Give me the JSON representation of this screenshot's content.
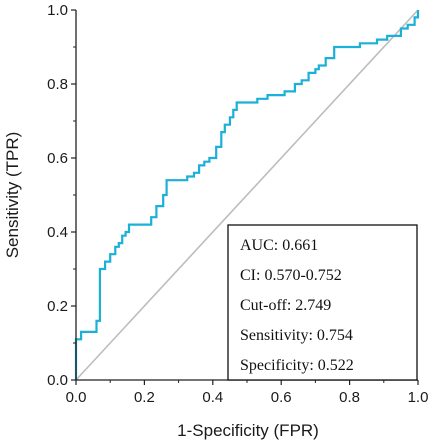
{
  "chart_data": {
    "type": "line",
    "title": "",
    "xlabel": "1-Specificity (FPR)",
    "ylabel": "Sensitivity (TPR)",
    "xlim": [
      0,
      1
    ],
    "ylim": [
      0,
      1
    ],
    "x_ticks": [
      "0.0",
      "0.2",
      "0.4",
      "0.6",
      "0.8",
      "1.0"
    ],
    "y_ticks": [
      "0.0",
      "0.2",
      "0.4",
      "0.6",
      "0.8",
      "1.0"
    ],
    "grid": false,
    "colors": {
      "roc": "#1ab0d8",
      "diagonal": "#bdbdbd",
      "axis": "#222222"
    },
    "series": [
      {
        "style": "step",
        "points": [
          [
            0.0,
            0.0
          ],
          [
            0.0,
            0.11
          ],
          [
            0.015,
            0.11
          ],
          [
            0.015,
            0.13
          ],
          [
            0.06,
            0.13
          ],
          [
            0.06,
            0.16
          ],
          [
            0.07,
            0.16
          ],
          [
            0.07,
            0.3
          ],
          [
            0.085,
            0.3
          ],
          [
            0.085,
            0.32
          ],
          [
            0.1,
            0.32
          ],
          [
            0.1,
            0.34
          ],
          [
            0.115,
            0.34
          ],
          [
            0.115,
            0.36
          ],
          [
            0.125,
            0.36
          ],
          [
            0.125,
            0.37
          ],
          [
            0.135,
            0.37
          ],
          [
            0.135,
            0.39
          ],
          [
            0.145,
            0.39
          ],
          [
            0.145,
            0.4
          ],
          [
            0.155,
            0.4
          ],
          [
            0.155,
            0.42
          ],
          [
            0.22,
            0.42
          ],
          [
            0.22,
            0.44
          ],
          [
            0.235,
            0.44
          ],
          [
            0.235,
            0.47
          ],
          [
            0.255,
            0.47
          ],
          [
            0.255,
            0.5
          ],
          [
            0.265,
            0.5
          ],
          [
            0.265,
            0.54
          ],
          [
            0.325,
            0.54
          ],
          [
            0.325,
            0.55
          ],
          [
            0.345,
            0.55
          ],
          [
            0.345,
            0.56
          ],
          [
            0.36,
            0.56
          ],
          [
            0.36,
            0.58
          ],
          [
            0.375,
            0.58
          ],
          [
            0.375,
            0.59
          ],
          [
            0.39,
            0.59
          ],
          [
            0.39,
            0.6
          ],
          [
            0.41,
            0.6
          ],
          [
            0.41,
            0.63
          ],
          [
            0.425,
            0.63
          ],
          [
            0.425,
            0.67
          ],
          [
            0.435,
            0.67
          ],
          [
            0.435,
            0.69
          ],
          [
            0.45,
            0.69
          ],
          [
            0.45,
            0.71
          ],
          [
            0.46,
            0.71
          ],
          [
            0.46,
            0.73
          ],
          [
            0.47,
            0.73
          ],
          [
            0.47,
            0.75
          ],
          [
            0.53,
            0.75
          ],
          [
            0.53,
            0.76
          ],
          [
            0.56,
            0.76
          ],
          [
            0.56,
            0.77
          ],
          [
            0.61,
            0.77
          ],
          [
            0.61,
            0.78
          ],
          [
            0.64,
            0.78
          ],
          [
            0.64,
            0.8
          ],
          [
            0.66,
            0.8
          ],
          [
            0.66,
            0.81
          ],
          [
            0.68,
            0.81
          ],
          [
            0.68,
            0.83
          ],
          [
            0.7,
            0.83
          ],
          [
            0.7,
            0.84
          ],
          [
            0.71,
            0.84
          ],
          [
            0.71,
            0.85
          ],
          [
            0.73,
            0.85
          ],
          [
            0.73,
            0.87
          ],
          [
            0.755,
            0.87
          ],
          [
            0.755,
            0.9
          ],
          [
            0.83,
            0.9
          ],
          [
            0.83,
            0.91
          ],
          [
            0.88,
            0.91
          ],
          [
            0.88,
            0.92
          ],
          [
            0.91,
            0.92
          ],
          [
            0.91,
            0.93
          ],
          [
            0.95,
            0.93
          ],
          [
            0.95,
            0.95
          ],
          [
            0.97,
            0.95
          ],
          [
            0.97,
            0.96
          ],
          [
            0.99,
            0.96
          ],
          [
            0.99,
            0.98
          ],
          [
            1.0,
            0.98
          ],
          [
            1.0,
            1.0
          ]
        ]
      },
      {
        "style": "reference-diagonal",
        "points": [
          [
            0,
            0
          ],
          [
            1,
            1
          ]
        ]
      }
    ],
    "stats_box": {
      "placement": "bottom-right",
      "lines": [
        "AUC: 0.661",
        "CI: 0.570-0.752",
        "Cut-off: 2.749",
        "Sensitivity: 0.754",
        "Specificity: 0.522"
      ]
    }
  }
}
